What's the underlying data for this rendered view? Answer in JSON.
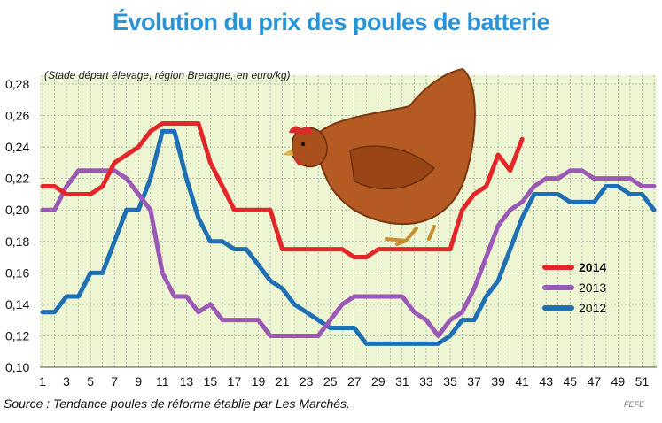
{
  "chart_data": {
    "type": "line",
    "title": "Évolution du prix des poules de batterie",
    "subtitle": "(Stade départ élevage, région Bretagne, en euro/kg)",
    "source": "Source : Tendance poules de réforme établie par Les Marchés.",
    "credit": "FEFE",
    "xlim": [
      1,
      52
    ],
    "ylim": [
      0.1,
      0.28
    ],
    "x_ticks": [
      1,
      3,
      5,
      7,
      9,
      11,
      13,
      15,
      17,
      19,
      21,
      23,
      25,
      27,
      29,
      31,
      33,
      35,
      37,
      39,
      41,
      43,
      45,
      47,
      49,
      51
    ],
    "y_ticks": [
      "0,10",
      "0,12",
      "0,14",
      "0,16",
      "0,18",
      "0,20",
      "0,22",
      "0,24",
      "0,26",
      "0,28"
    ],
    "grid": true,
    "legend_position": "right",
    "series": [
      {
        "name": "2014",
        "color": "#e3262a",
        "x": [
          1,
          2,
          3,
          4,
          5,
          6,
          7,
          8,
          9,
          10,
          11,
          12,
          13,
          14,
          15,
          16,
          17,
          18,
          19,
          20,
          21,
          22,
          23,
          24,
          25,
          26,
          27,
          28,
          29,
          30,
          31,
          32,
          33,
          34,
          35,
          36,
          37,
          38,
          39,
          40,
          41
        ],
        "values": [
          0.215,
          0.215,
          0.21,
          0.21,
          0.21,
          0.215,
          0.23,
          0.235,
          0.24,
          0.25,
          0.255,
          0.255,
          0.255,
          0.255,
          0.23,
          0.215,
          0.2,
          0.2,
          0.2,
          0.2,
          0.175,
          0.175,
          0.175,
          0.175,
          0.175,
          0.175,
          0.17,
          0.17,
          0.175,
          0.175,
          0.175,
          0.175,
          0.175,
          0.175,
          0.175,
          0.2,
          0.21,
          0.215,
          0.235,
          0.225,
          0.245
        ]
      },
      {
        "name": "2013",
        "color": "#9b59b6",
        "x": [
          1,
          2,
          3,
          4,
          5,
          6,
          7,
          8,
          9,
          10,
          11,
          12,
          13,
          14,
          15,
          16,
          17,
          18,
          19,
          20,
          21,
          22,
          23,
          24,
          25,
          26,
          27,
          28,
          29,
          30,
          31,
          32,
          33,
          34,
          35,
          36,
          37,
          38,
          39,
          40,
          41,
          42,
          43,
          44,
          45,
          46,
          47,
          48,
          49,
          50,
          51,
          52
        ],
        "values": [
          0.2,
          0.2,
          0.215,
          0.225,
          0.225,
          0.225,
          0.225,
          0.22,
          0.21,
          0.2,
          0.16,
          0.145,
          0.145,
          0.135,
          0.14,
          0.13,
          0.13,
          0.13,
          0.13,
          0.12,
          0.12,
          0.12,
          0.12,
          0.12,
          0.13,
          0.14,
          0.145,
          0.145,
          0.145,
          0.145,
          0.145,
          0.135,
          0.13,
          0.12,
          0.13,
          0.135,
          0.15,
          0.17,
          0.19,
          0.2,
          0.205,
          0.215,
          0.22,
          0.22,
          0.225,
          0.225,
          0.22,
          0.22,
          0.22,
          0.22,
          0.215,
          0.215
        ]
      },
      {
        "name": "2012",
        "color": "#1f6fb5",
        "x": [
          1,
          2,
          3,
          4,
          5,
          6,
          7,
          8,
          9,
          10,
          11,
          12,
          13,
          14,
          15,
          16,
          17,
          18,
          19,
          20,
          21,
          22,
          23,
          24,
          25,
          26,
          27,
          28,
          29,
          30,
          31,
          32,
          33,
          34,
          35,
          36,
          37,
          38,
          39,
          40,
          41,
          42,
          43,
          44,
          45,
          46,
          47,
          48,
          49,
          50,
          51,
          52
        ],
        "values": [
          0.135,
          0.135,
          0.145,
          0.145,
          0.16,
          0.16,
          0.18,
          0.2,
          0.2,
          0.22,
          0.25,
          0.25,
          0.22,
          0.195,
          0.18,
          0.18,
          0.175,
          0.175,
          0.165,
          0.155,
          0.15,
          0.14,
          0.135,
          0.13,
          0.125,
          0.125,
          0.125,
          0.115,
          0.115,
          0.115,
          0.115,
          0.115,
          0.115,
          0.115,
          0.12,
          0.13,
          0.13,
          0.145,
          0.155,
          0.175,
          0.195,
          0.21,
          0.21,
          0.21,
          0.205,
          0.205,
          0.205,
          0.215,
          0.215,
          0.21,
          0.21,
          0.2
        ]
      }
    ]
  },
  "colors": {
    "plot_background": "#eef5d3",
    "grid": "#9aa89b",
    "title": "#2a93d5"
  },
  "illustration": {
    "name": "hen-illustration"
  }
}
